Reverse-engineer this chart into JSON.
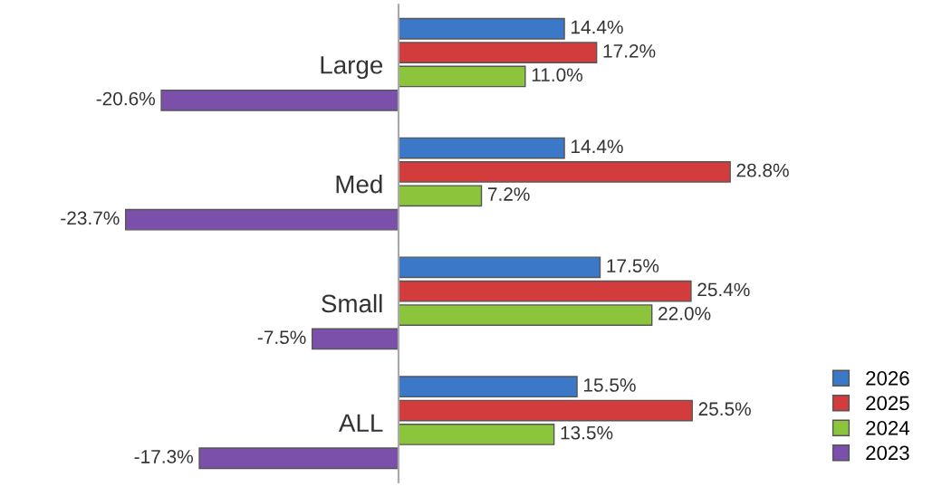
{
  "chart_data": {
    "type": "bar",
    "orientation": "horizontal",
    "categories": [
      "Large",
      "Med",
      "Small",
      "ALL"
    ],
    "series": [
      {
        "name": "2026",
        "color": "#3c78c8",
        "values": [
          14.4,
          14.4,
          17.5,
          15.5
        ],
        "value_labels": [
          "14.4%",
          "14.4%",
          "17.5%",
          "15.5%"
        ]
      },
      {
        "name": "2025",
        "color": "#d23c3c",
        "values": [
          17.2,
          28.8,
          25.4,
          25.5
        ],
        "value_labels": [
          "17.2%",
          "28.8%",
          "25.4%",
          "25.5%"
        ]
      },
      {
        "name": "2024",
        "color": "#8cc43c",
        "values": [
          11.0,
          7.2,
          22.0,
          13.5
        ],
        "value_labels": [
          "11.0%",
          "7.2%",
          "22.0%",
          "13.5%"
        ]
      },
      {
        "name": "2023",
        "color": "#7a50aa",
        "values": [
          -20.6,
          -23.7,
          -7.5,
          -17.3
        ],
        "value_labels": [
          "-20.6%",
          "-23.7%",
          "-7.5%",
          "-17.3%"
        ]
      }
    ],
    "legend": "bottom right",
    "grid": false
  }
}
